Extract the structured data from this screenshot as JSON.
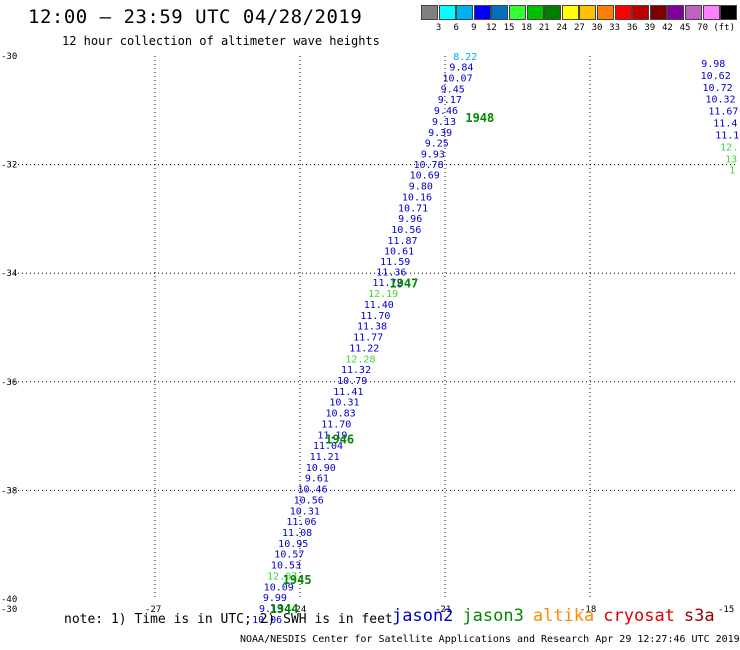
{
  "header": {
    "title": "12:00 – 23:59 UTC 04/28/2019",
    "subtitle": "12 hour collection of altimeter wave heights"
  },
  "scale": {
    "colors": [
      "#808080",
      "#00ffff",
      "#00b0f0",
      "#0000ff",
      "#0070c0",
      "#33ff33",
      "#00c000",
      "#008000",
      "#ffff00",
      "#ffc000",
      "#ff8000",
      "#ff0000",
      "#c00000",
      "#800000",
      "#8000a0",
      "#c060c0",
      "#ff80ff",
      "#000000"
    ],
    "labels": [
      "3",
      "6",
      "9",
      "12",
      "15",
      "18",
      "21",
      "24",
      "27",
      "30",
      "33",
      "36",
      "39",
      "42",
      "45",
      "70",
      "(ft)"
    ]
  },
  "note": "note: 1) Time is in UTC; 2) SWH is in feet",
  "footer": "NOAA/NESDIS Center for Satellite Applications and Research    Apr 29 12:27:46 UTC 2019",
  "legend": [
    {
      "name": "jason2",
      "color": "#0000cc"
    },
    {
      "name": "jason3",
      "color": "#008800"
    },
    {
      "name": "altika",
      "color": "#ff8c00"
    },
    {
      "name": "cryosat",
      "color": "#dd0000"
    },
    {
      "name": "s3a",
      "color": "#990000"
    }
  ],
  "chart_data": {
    "type": "scatter",
    "xlabel": "",
    "ylabel": "",
    "xlim": [
      -30,
      -15
    ],
    "ylim": [
      -40,
      -30
    ],
    "x_ticks": [
      -30,
      -27,
      -24,
      -21,
      -18,
      -15
    ],
    "y_ticks": [
      -30,
      -32,
      -34,
      -36,
      -38,
      -40
    ],
    "x_tick_labels": [
      "-30",
      "-27",
      "-24",
      "-21",
      "-18",
      "-15"
    ],
    "y_tick_labels": [
      "-30",
      "-32",
      "-34",
      "-36",
      "-38",
      "-40"
    ],
    "grid": "dotted",
    "series": [
      {
        "name": "jason2",
        "color": "#0000cc",
        "points": [
          {
            "x": -20.66,
            "y": -30.27,
            "v": "9.84"
          },
          {
            "x": -20.74,
            "y": -30.47,
            "v": "10.07"
          },
          {
            "x": -20.84,
            "y": -30.67,
            "v": "9.45"
          },
          {
            "x": -20.9,
            "y": -30.87,
            "v": "9.17"
          },
          {
            "x": -20.98,
            "y": -31.07,
            "v": "9.46"
          },
          {
            "x": -21.02,
            "y": -31.27,
            "v": "9.13"
          },
          {
            "x": -21.1,
            "y": -31.47,
            "v": "9.39"
          },
          {
            "x": -21.17,
            "y": -31.67,
            "v": "9.25"
          },
          {
            "x": -21.25,
            "y": -31.87,
            "v": "9.93"
          },
          {
            "x": -21.34,
            "y": -32.06,
            "v": "10.78"
          },
          {
            "x": -21.42,
            "y": -32.26,
            "v": "10.69"
          },
          {
            "x": -21.5,
            "y": -32.46,
            "v": "9.80"
          },
          {
            "x": -21.58,
            "y": -32.66,
            "v": "10.16"
          },
          {
            "x": -21.66,
            "y": -32.86,
            "v": "10.71"
          },
          {
            "x": -21.72,
            "y": -33.06,
            "v": "9.96"
          },
          {
            "x": -21.8,
            "y": -33.26,
            "v": "10.56"
          },
          {
            "x": -21.88,
            "y": -33.46,
            "v": "11.87"
          },
          {
            "x": -21.95,
            "y": -33.66,
            "v": "10.61"
          },
          {
            "x": -22.03,
            "y": -33.85,
            "v": "11.59"
          },
          {
            "x": -22.11,
            "y": -34.04,
            "v": "11.36"
          },
          {
            "x": -22.19,
            "y": -34.24,
            "v": "11.72"
          },
          {
            "x": -22.37,
            "y": -34.64,
            "v": "11.40"
          },
          {
            "x": -22.44,
            "y": -34.84,
            "v": "11.70"
          },
          {
            "x": -22.51,
            "y": -35.04,
            "v": "11.38"
          },
          {
            "x": -22.59,
            "y": -35.24,
            "v": "11.77"
          },
          {
            "x": -22.67,
            "y": -35.44,
            "v": "11.22"
          },
          {
            "x": -22.84,
            "y": -35.84,
            "v": "11.32"
          },
          {
            "x": -22.92,
            "y": -36.04,
            "v": "10.79"
          },
          {
            "x": -23.0,
            "y": -36.24,
            "v": "11.41"
          },
          {
            "x": -23.08,
            "y": -36.44,
            "v": "10.31"
          },
          {
            "x": -23.16,
            "y": -36.64,
            "v": "10.83"
          },
          {
            "x": -23.25,
            "y": -36.84,
            "v": "11.70"
          },
          {
            "x": -23.33,
            "y": -37.04,
            "v": "11.19"
          },
          {
            "x": -23.42,
            "y": -37.24,
            "v": "11.04"
          },
          {
            "x": -23.49,
            "y": -37.44,
            "v": "11.21"
          },
          {
            "x": -23.57,
            "y": -37.64,
            "v": "10.90"
          },
          {
            "x": -23.65,
            "y": -37.84,
            "v": "9.61"
          },
          {
            "x": -23.74,
            "y": -38.04,
            "v": "10.46"
          },
          {
            "x": -23.82,
            "y": -38.24,
            "v": "10.56"
          },
          {
            "x": -23.9,
            "y": -38.44,
            "v": "10.31"
          },
          {
            "x": -23.97,
            "y": -38.64,
            "v": "11.06"
          },
          {
            "x": -24.06,
            "y": -38.84,
            "v": "11.08"
          },
          {
            "x": -24.14,
            "y": -39.04,
            "v": "10.95"
          },
          {
            "x": -24.22,
            "y": -39.24,
            "v": "10.57"
          },
          {
            "x": -24.29,
            "y": -39.44,
            "v": "10.53"
          },
          {
            "x": -24.44,
            "y": -39.84,
            "v": "10.09"
          },
          {
            "x": -24.52,
            "y": -40.04,
            "v": "9.99"
          },
          {
            "x": -24.6,
            "y": -40.24,
            "v": "9.13"
          },
          {
            "x": -24.68,
            "y": -40.44,
            "v": "10.06"
          },
          {
            "x": -15.45,
            "y": -30.2,
            "v": "9.98"
          },
          {
            "x": -15.4,
            "y": -30.42,
            "v": "10.62"
          },
          {
            "x": -15.36,
            "y": -30.64,
            "v": "10.72"
          },
          {
            "x": -15.3,
            "y": -30.86,
            "v": "10.32"
          },
          {
            "x": -15.24,
            "y": -31.08,
            "v": "11.67"
          },
          {
            "x": -15.2,
            "y": -31.3,
            "v": "11.4"
          },
          {
            "x": -15.16,
            "y": -31.52,
            "v": "11.1"
          }
        ]
      },
      {
        "name": "jason2-light",
        "color": "#00aadd",
        "points": [
          {
            "x": -20.58,
            "y": -30.07,
            "v": "8.22"
          }
        ]
      },
      {
        "name": "jason2-green",
        "color": "#33dd33",
        "points": [
          {
            "x": -22.28,
            "y": -34.44,
            "v": "12.19"
          },
          {
            "x": -22.75,
            "y": -35.64,
            "v": "12.28"
          },
          {
            "x": -24.37,
            "y": -39.64,
            "v": "12.07"
          },
          {
            "x": -15.12,
            "y": -31.74,
            "v": "12."
          },
          {
            "x": -15.08,
            "y": -31.96,
            "v": "13"
          },
          {
            "x": -15.06,
            "y": -32.16,
            "v": "1"
          }
        ]
      }
    ],
    "time_labels": [
      {
        "x": -20.28,
        "y": -31.22,
        "v": "1948"
      },
      {
        "x": -21.85,
        "y": -34.26,
        "v": "1947"
      },
      {
        "x": -23.18,
        "y": -37.14,
        "v": "1946"
      },
      {
        "x": -24.06,
        "y": -39.72,
        "v": "1945"
      },
      {
        "x": -24.33,
        "y": -40.26,
        "v": "1944"
      }
    ]
  }
}
